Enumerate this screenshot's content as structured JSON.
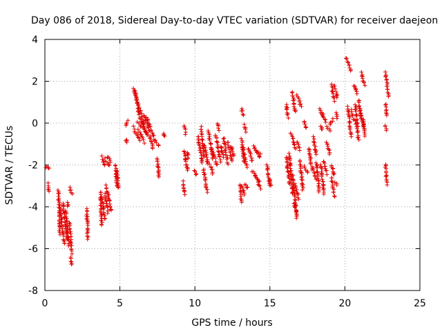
{
  "chart_data": {
    "type": "scatter",
    "title": "Day 086 of 2018, Sidereal Day-to-day VTEC variation (SDTVAR) for receiver daejeon",
    "xlabel": "GPS time / hours",
    "ylabel": "SDTVAR / TECUs",
    "xlim": [
      0,
      25
    ],
    "ylim": [
      -8,
      4
    ],
    "xticks": [
      "0",
      "5",
      "10",
      "15",
      "20",
      "25"
    ],
    "yticks": [
      "-8",
      "-6",
      "-4",
      "-2",
      "0",
      "2",
      "4"
    ],
    "grid": true,
    "marker": "+",
    "color": "#e00000",
    "segments": [
      {
        "x0": 0.05,
        "y0": -2.1,
        "x1": 0.3,
        "y1": -2.2
      },
      {
        "x0": 0.2,
        "y0": -2.9,
        "x1": 0.25,
        "y1": -3.3
      },
      {
        "x0": 0.9,
        "y0": -3.2,
        "x1": 1.0,
        "y1": -5.3
      },
      {
        "x0": 1.0,
        "y0": -4.0,
        "x1": 1.3,
        "y1": -5.8
      },
      {
        "x0": 1.2,
        "y0": -3.8,
        "x1": 1.5,
        "y1": -5.6
      },
      {
        "x0": 1.4,
        "y0": -4.2,
        "x1": 1.6,
        "y1": -5.9
      },
      {
        "x0": 1.5,
        "y0": -3.8,
        "x1": 1.55,
        "y1": -4.0
      },
      {
        "x0": 1.65,
        "y0": -4.8,
        "x1": 1.8,
        "y1": -6.2
      },
      {
        "x0": 1.7,
        "y0": -6.4,
        "x1": 1.8,
        "y1": -6.8
      },
      {
        "x0": 1.65,
        "y0": -3.1,
        "x1": 1.8,
        "y1": -3.4
      },
      {
        "x0": 2.8,
        "y0": -4.1,
        "x1": 2.85,
        "y1": -5.5
      },
      {
        "x0": 3.7,
        "y0": -3.3,
        "x1": 3.8,
        "y1": -4.9
      },
      {
        "x0": 3.8,
        "y0": -3.5,
        "x1": 4.0,
        "y1": -4.6
      },
      {
        "x0": 4.0,
        "y0": -3.4,
        "x1": 4.2,
        "y1": -4.3
      },
      {
        "x0": 4.1,
        "y0": -3.0,
        "x1": 4.4,
        "y1": -4.2
      },
      {
        "x0": 3.8,
        "y0": -1.6,
        "x1": 4.0,
        "y1": -2.0
      },
      {
        "x0": 4.0,
        "y0": -1.7,
        "x1": 4.3,
        "y1": -2.0
      },
      {
        "x0": 4.2,
        "y0": -1.6,
        "x1": 4.4,
        "y1": -1.9
      },
      {
        "x0": 4.7,
        "y0": -2.0,
        "x1": 4.8,
        "y1": -3.0
      },
      {
        "x0": 4.8,
        "y0": -2.3,
        "x1": 4.9,
        "y1": -3.1
      },
      {
        "x0": 5.4,
        "y0": -0.1,
        "x1": 5.5,
        "y1": 0.1
      },
      {
        "x0": 5.4,
        "y0": -0.8,
        "x1": 5.5,
        "y1": -0.9
      },
      {
        "x0": 5.9,
        "y0": 1.6,
        "x1": 6.1,
        "y1": 1.2
      },
      {
        "x0": 6.0,
        "y0": 1.5,
        "x1": 6.3,
        "y1": 0.3
      },
      {
        "x0": 6.2,
        "y0": 1.0,
        "x1": 6.6,
        "y1": -0.1
      },
      {
        "x0": 5.9,
        "y0": -0.2,
        "x1": 6.3,
        "y1": -0.8
      },
      {
        "x0": 6.2,
        "y0": -0.3,
        "x1": 6.6,
        "y1": -0.9
      },
      {
        "x0": 6.4,
        "y0": 0.2,
        "x1": 6.8,
        "y1": -0.5
      },
      {
        "x0": 6.6,
        "y0": 0.4,
        "x1": 7.0,
        "y1": -0.4
      },
      {
        "x0": 6.8,
        "y0": 0.3,
        "x1": 7.3,
        "y1": -0.8
      },
      {
        "x0": 6.2,
        "y0": 0.1,
        "x1": 6.9,
        "y1": -0.6
      },
      {
        "x0": 7.0,
        "y0": -0.6,
        "x1": 7.2,
        "y1": -1.2
      },
      {
        "x0": 7.3,
        "y0": -0.8,
        "x1": 7.6,
        "y1": -1.1
      },
      {
        "x0": 7.5,
        "y0": -1.7,
        "x1": 7.6,
        "y1": -2.6
      },
      {
        "x0": 7.9,
        "y0": -0.5,
        "x1": 7.95,
        "y1": -0.6
      },
      {
        "x0": 9.3,
        "y0": -0.1,
        "x1": 9.4,
        "y1": -0.5
      },
      {
        "x0": 9.3,
        "y0": -1.3,
        "x1": 9.5,
        "y1": -2.3
      },
      {
        "x0": 9.2,
        "y0": -2.8,
        "x1": 9.3,
        "y1": -3.4
      },
      {
        "x0": 9.5,
        "y0": -1.4,
        "x1": 9.55,
        "y1": -1.7
      },
      {
        "x0": 10.0,
        "y0": -2.3,
        "x1": 10.1,
        "y1": -2.5
      },
      {
        "x0": 10.2,
        "y0": -0.6,
        "x1": 10.5,
        "y1": -1.9
      },
      {
        "x0": 10.4,
        "y0": -0.2,
        "x1": 10.6,
        "y1": -1.6
      },
      {
        "x0": 10.6,
        "y0": -1.0,
        "x1": 10.9,
        "y1": -2.0
      },
      {
        "x0": 10.6,
        "y0": -2.2,
        "x1": 10.8,
        "y1": -3.3
      },
      {
        "x0": 10.9,
        "y0": -0.4,
        "x1": 11.2,
        "y1": -1.7
      },
      {
        "x0": 11.0,
        "y0": -2.0,
        "x1": 11.2,
        "y1": -2.4
      },
      {
        "x0": 11.1,
        "y0": -1.2,
        "x1": 11.5,
        "y1": -2.0
      },
      {
        "x0": 11.4,
        "y0": -0.6,
        "x1": 11.7,
        "y1": -1.8
      },
      {
        "x0": 11.5,
        "y0": 0.0,
        "x1": 11.6,
        "y1": -0.3
      },
      {
        "x0": 11.7,
        "y0": -1.1,
        "x1": 11.9,
        "y1": -1.6
      },
      {
        "x0": 11.9,
        "y0": -0.7,
        "x1": 12.2,
        "y1": -1.9
      },
      {
        "x0": 12.2,
        "y0": -0.9,
        "x1": 12.5,
        "y1": -1.8
      },
      {
        "x0": 12.4,
        "y0": -1.1,
        "x1": 12.6,
        "y1": -1.6
      },
      {
        "x0": 13.1,
        "y0": 0.7,
        "x1": 13.2,
        "y1": 0.4
      },
      {
        "x0": 13.1,
        "y0": -0.8,
        "x1": 13.3,
        "y1": -1.9
      },
      {
        "x0": 13.2,
        "y0": -1.1,
        "x1": 13.45,
        "y1": -2.1
      },
      {
        "x0": 13.0,
        "y0": -2.9,
        "x1": 13.1,
        "y1": -3.8
      },
      {
        "x0": 13.1,
        "y0": -3.0,
        "x1": 13.3,
        "y1": -3.4
      },
      {
        "x0": 13.3,
        "y0": -2.9,
        "x1": 13.5,
        "y1": -3.1
      },
      {
        "x0": 13.3,
        "y0": -0.1,
        "x1": 13.4,
        "y1": -0.4
      },
      {
        "x0": 13.6,
        "y0": -1.2,
        "x1": 13.8,
        "y1": -1.8
      },
      {
        "x0": 13.8,
        "y0": -2.3,
        "x1": 14.3,
        "y1": -2.8
      },
      {
        "x0": 14.0,
        "y0": -2.5,
        "x1": 14.4,
        "y1": -3.1
      },
      {
        "x0": 13.9,
        "y0": -1.1,
        "x1": 14.3,
        "y1": -1.6
      },
      {
        "x0": 14.1,
        "y0": -1.3,
        "x1": 14.4,
        "y1": -1.5
      },
      {
        "x0": 14.8,
        "y0": -2.0,
        "x1": 15.0,
        "y1": -3.0
      },
      {
        "x0": 15.0,
        "y0": -2.7,
        "x1": 15.1,
        "y1": -3.0
      },
      {
        "x0": 16.1,
        "y0": 0.9,
        "x1": 16.2,
        "y1": 0.3
      },
      {
        "x0": 16.1,
        "y0": -1.6,
        "x1": 16.3,
        "y1": -2.9
      },
      {
        "x0": 16.3,
        "y0": -1.5,
        "x1": 16.5,
        "y1": -3.4
      },
      {
        "x0": 16.5,
        "y0": 1.5,
        "x1": 16.7,
        "y1": 0.5
      },
      {
        "x0": 16.4,
        "y0": -0.5,
        "x1": 16.7,
        "y1": -1.2
      },
      {
        "x0": 16.5,
        "y0": -2.5,
        "x1": 16.8,
        "y1": -4.5
      },
      {
        "x0": 16.6,
        "y0": -3.9,
        "x1": 16.8,
        "y1": -4.3
      },
      {
        "x0": 16.7,
        "y0": -2.9,
        "x1": 16.9,
        "y1": -3.6
      },
      {
        "x0": 16.8,
        "y0": 1.3,
        "x1": 17.1,
        "y1": 0.8
      },
      {
        "x0": 16.8,
        "y0": -0.9,
        "x1": 17.0,
        "y1": -1.3
      },
      {
        "x0": 17.0,
        "y0": -1.8,
        "x1": 17.2,
        "y1": -3.2
      },
      {
        "x0": 17.3,
        "y0": -2.1,
        "x1": 17.5,
        "y1": -2.4
      },
      {
        "x0": 17.3,
        "y0": 0.1,
        "x1": 17.4,
        "y1": -0.2
      },
      {
        "x0": 17.6,
        "y0": -1.2,
        "x1": 17.8,
        "y1": -2.2
      },
      {
        "x0": 17.9,
        "y0": -0.7,
        "x1": 18.1,
        "y1": -1.5
      },
      {
        "x0": 17.9,
        "y0": -2.2,
        "x1": 18.1,
        "y1": -2.7
      },
      {
        "x0": 18.1,
        "y0": -1.9,
        "x1": 18.3,
        "y1": -3.3
      },
      {
        "x0": 18.3,
        "y0": 0.7,
        "x1": 18.5,
        "y1": 0.4
      },
      {
        "x0": 18.4,
        "y0": -0.1,
        "x1": 18.5,
        "y1": -0.3
      },
      {
        "x0": 18.5,
        "y0": 0.5,
        "x1": 18.7,
        "y1": 0.1
      },
      {
        "x0": 18.4,
        "y0": -2.0,
        "x1": 18.6,
        "y1": -3.4
      },
      {
        "x0": 18.6,
        "y0": -1.8,
        "x1": 18.8,
        "y1": -2.4
      },
      {
        "x0": 18.8,
        "y0": -0.9,
        "x1": 19.0,
        "y1": -1.5
      },
      {
        "x0": 18.8,
        "y0": -0.2,
        "x1": 19.0,
        "y1": -0.4
      },
      {
        "x0": 19.0,
        "y0": -0.1,
        "x1": 19.2,
        "y1": 0.2
      },
      {
        "x0": 19.1,
        "y0": 1.8,
        "x1": 19.3,
        "y1": 1.1
      },
      {
        "x0": 19.3,
        "y0": 1.8,
        "x1": 19.5,
        "y1": 1.2
      },
      {
        "x0": 19.1,
        "y0": -2.0,
        "x1": 19.3,
        "y1": -2.5
      },
      {
        "x0": 19.1,
        "y0": -2.6,
        "x1": 19.3,
        "y1": -3.5
      },
      {
        "x0": 19.3,
        "y0": -2.8,
        "x1": 19.5,
        "y1": -3.0
      },
      {
        "x0": 19.4,
        "y0": 0.5,
        "x1": 19.5,
        "y1": 0.2
      },
      {
        "x0": 20.1,
        "y0": 3.1,
        "x1": 20.4,
        "y1": 2.5
      },
      {
        "x0": 20.2,
        "y0": 0.8,
        "x1": 20.4,
        "y1": -0.6
      },
      {
        "x0": 20.4,
        "y0": 0.6,
        "x1": 20.7,
        "y1": 0.0
      },
      {
        "x0": 20.6,
        "y0": 1.8,
        "x1": 20.8,
        "y1": 1.4
      },
      {
        "x0": 20.7,
        "y0": 0.9,
        "x1": 20.9,
        "y1": -0.8
      },
      {
        "x0": 20.9,
        "y0": 1.1,
        "x1": 21.1,
        "y1": 0.2
      },
      {
        "x0": 21.0,
        "y0": 0.6,
        "x1": 21.3,
        "y1": -0.3
      },
      {
        "x0": 21.1,
        "y0": 2.4,
        "x1": 21.3,
        "y1": 1.8
      },
      {
        "x0": 21.2,
        "y0": 0.2,
        "x1": 21.3,
        "y1": -0.6
      },
      {
        "x0": 22.7,
        "y0": 2.4,
        "x1": 22.9,
        "y1": 1.3
      },
      {
        "x0": 22.7,
        "y0": 0.9,
        "x1": 22.8,
        "y1": 0.4
      },
      {
        "x0": 22.7,
        "y0": -0.1,
        "x1": 22.75,
        "y1": -0.3
      },
      {
        "x0": 22.7,
        "y0": -2.0,
        "x1": 22.8,
        "y1": -2.9
      }
    ]
  }
}
